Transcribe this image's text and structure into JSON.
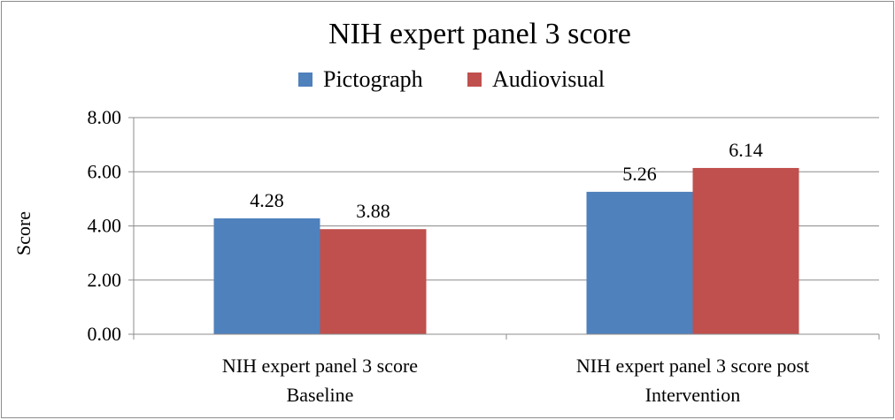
{
  "chart_data": {
    "type": "bar",
    "title": "NIH expert panel 3 score",
    "ylabel": "Score",
    "xlabel": "",
    "ylim": [
      0,
      8
    ],
    "yticks": [
      "0.00",
      "2.00",
      "4.00",
      "6.00",
      "8.00"
    ],
    "grid": true,
    "legend_position": "top",
    "categories": [
      [
        "NIH expert panel 3 score",
        "Baseline"
      ],
      [
        "NIH expert panel 3 score post",
        "Intervention"
      ]
    ],
    "series": [
      {
        "name": "Pictograph",
        "color": "#4f81bd",
        "values": [
          4.28,
          5.26
        ],
        "labels": [
          "4.28",
          "5.26"
        ]
      },
      {
        "name": "Audiovisual",
        "color": "#c0504d",
        "values": [
          3.88,
          6.14
        ],
        "labels": [
          "3.88",
          "6.14"
        ]
      }
    ]
  }
}
